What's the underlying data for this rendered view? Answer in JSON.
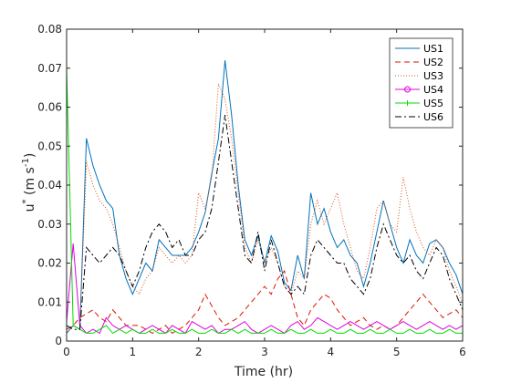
{
  "chart_data": {
    "type": "line",
    "title": "",
    "xlabel": "Time (hr)",
    "ylabel_main": "u",
    "ylabel_sup": "*",
    "ylabel_unit_prefix": " (m s",
    "ylabel_unit_exp": "-1",
    "ylabel_unit_suffix": ")",
    "xlim": [
      0,
      6
    ],
    "ylim": [
      0,
      0.08
    ],
    "xticks": [
      0,
      1,
      2,
      3,
      4,
      5,
      6
    ],
    "xtick_labels": [
      "0",
      "1",
      "2",
      "3",
      "4",
      "5",
      "6"
    ],
    "yticks": [
      0,
      0.01,
      0.02,
      0.03,
      0.04,
      0.05,
      0.06,
      0.07,
      0.08
    ],
    "ytick_labels": [
      "0",
      "0.01",
      "0.02",
      "0.03",
      "0.04",
      "0.05",
      "0.06",
      "0.07",
      "0.08"
    ],
    "grid": false,
    "legend_position": "top-right",
    "x": [
      0.0,
      0.1,
      0.2,
      0.3,
      0.4,
      0.5,
      0.6,
      0.7,
      0.8,
      0.9,
      1.0,
      1.1,
      1.2,
      1.3,
      1.4,
      1.5,
      1.6,
      1.7,
      1.8,
      1.9,
      2.0,
      2.1,
      2.2,
      2.3,
      2.4,
      2.5,
      2.6,
      2.7,
      2.8,
      2.9,
      3.0,
      3.1,
      3.2,
      3.3,
      3.4,
      3.5,
      3.6,
      3.7,
      3.8,
      3.9,
      4.0,
      4.1,
      4.2,
      4.3,
      4.4,
      4.5,
      4.6,
      4.7,
      4.8,
      4.9,
      5.0,
      5.1,
      5.2,
      5.3,
      5.4,
      5.5,
      5.6,
      5.7,
      5.8,
      5.9,
      6.0
    ],
    "series": [
      {
        "name": "US1",
        "color": "#0072BD",
        "dash": "",
        "marker": "none",
        "values": [
          0.002,
          0.004,
          0.003,
          0.052,
          0.045,
          0.04,
          0.036,
          0.034,
          0.022,
          0.016,
          0.012,
          0.016,
          0.02,
          0.018,
          0.026,
          0.024,
          0.022,
          0.022,
          0.022,
          0.024,
          0.028,
          0.033,
          0.043,
          0.052,
          0.072,
          0.058,
          0.04,
          0.026,
          0.022,
          0.027,
          0.02,
          0.027,
          0.023,
          0.015,
          0.013,
          0.022,
          0.016,
          0.038,
          0.03,
          0.034,
          0.028,
          0.024,
          0.026,
          0.022,
          0.02,
          0.014,
          0.02,
          0.028,
          0.036,
          0.03,
          0.024,
          0.02,
          0.026,
          0.022,
          0.02,
          0.025,
          0.026,
          0.024,
          0.02,
          0.017,
          0.012
        ]
      },
      {
        "name": "US2",
        "color": "#D91500",
        "dash": "6,4",
        "marker": "none",
        "values": [
          0.003,
          0.004,
          0.006,
          0.007,
          0.008,
          0.006,
          0.005,
          0.008,
          0.006,
          0.004,
          0.004,
          0.004,
          0.003,
          0.002,
          0.003,
          0.004,
          0.002,
          0.003,
          0.004,
          0.006,
          0.008,
          0.012,
          0.009,
          0.006,
          0.004,
          0.005,
          0.006,
          0.008,
          0.01,
          0.012,
          0.014,
          0.012,
          0.016,
          0.018,
          0.012,
          0.006,
          0.004,
          0.008,
          0.01,
          0.012,
          0.011,
          0.008,
          0.006,
          0.004,
          0.005,
          0.006,
          0.004,
          0.003,
          0.004,
          0.003,
          0.004,
          0.006,
          0.008,
          0.01,
          0.012,
          0.01,
          0.008,
          0.006,
          0.007,
          0.008,
          0.006
        ]
      },
      {
        "name": "US3",
        "color": "#D95319",
        "dash": "1,2",
        "marker": "none",
        "values": [
          0.002,
          0.004,
          0.003,
          0.046,
          0.04,
          0.036,
          0.034,
          0.03,
          0.024,
          0.018,
          0.014,
          0.012,
          0.016,
          0.018,
          0.024,
          0.022,
          0.02,
          0.022,
          0.02,
          0.022,
          0.038,
          0.034,
          0.042,
          0.066,
          0.062,
          0.052,
          0.038,
          0.024,
          0.02,
          0.026,
          0.02,
          0.024,
          0.02,
          0.014,
          0.012,
          0.018,
          0.016,
          0.03,
          0.036,
          0.03,
          0.034,
          0.038,
          0.03,
          0.024,
          0.018,
          0.016,
          0.024,
          0.034,
          0.036,
          0.03,
          0.028,
          0.042,
          0.034,
          0.028,
          0.024,
          0.022,
          0.026,
          0.024,
          0.018,
          0.014,
          0.01
        ]
      },
      {
        "name": "US4",
        "color": "#E000E0",
        "dash": "",
        "marker": "circle",
        "values": [
          0.005,
          0.025,
          0.004,
          0.002,
          0.003,
          0.002,
          0.006,
          0.004,
          0.003,
          0.004,
          0.003,
          0.002,
          0.003,
          0.004,
          0.003,
          0.002,
          0.004,
          0.003,
          0.002,
          0.005,
          0.004,
          0.003,
          0.004,
          0.002,
          0.003,
          0.003,
          0.004,
          0.005,
          0.003,
          0.002,
          0.003,
          0.004,
          0.003,
          0.002,
          0.004,
          0.005,
          0.003,
          0.004,
          0.006,
          0.005,
          0.004,
          0.003,
          0.004,
          0.005,
          0.004,
          0.003,
          0.004,
          0.005,
          0.004,
          0.003,
          0.004,
          0.005,
          0.004,
          0.003,
          0.004,
          0.005,
          0.004,
          0.003,
          0.004,
          0.003,
          0.004
        ]
      },
      {
        "name": "US5",
        "color": "#00DD00",
        "dash": "",
        "marker": "plus",
        "values": [
          0.07,
          0.004,
          0.003,
          0.002,
          0.002,
          0.003,
          0.004,
          0.002,
          0.003,
          0.002,
          0.003,
          0.002,
          0.002,
          0.003,
          0.002,
          0.002,
          0.003,
          0.002,
          0.002,
          0.003,
          0.002,
          0.002,
          0.003,
          0.002,
          0.002,
          0.003,
          0.002,
          0.003,
          0.002,
          0.002,
          0.002,
          0.003,
          0.002,
          0.002,
          0.003,
          0.002,
          0.002,
          0.003,
          0.002,
          0.002,
          0.003,
          0.002,
          0.002,
          0.003,
          0.002,
          0.002,
          0.003,
          0.002,
          0.002,
          0.003,
          0.002,
          0.002,
          0.003,
          0.002,
          0.002,
          0.003,
          0.002,
          0.002,
          0.003,
          0.002,
          0.002
        ]
      },
      {
        "name": "US6",
        "color": "#000000",
        "dash": "7,3,2,3",
        "marker": "none",
        "values": [
          0.004,
          0.003,
          0.003,
          0.024,
          0.022,
          0.02,
          0.022,
          0.024,
          0.022,
          0.018,
          0.014,
          0.018,
          0.024,
          0.028,
          0.03,
          0.028,
          0.024,
          0.026,
          0.022,
          0.022,
          0.026,
          0.028,
          0.034,
          0.046,
          0.058,
          0.046,
          0.034,
          0.022,
          0.02,
          0.028,
          0.018,
          0.026,
          0.02,
          0.014,
          0.012,
          0.014,
          0.012,
          0.022,
          0.026,
          0.024,
          0.022,
          0.02,
          0.02,
          0.016,
          0.014,
          0.012,
          0.016,
          0.024,
          0.03,
          0.026,
          0.022,
          0.02,
          0.022,
          0.018,
          0.016,
          0.02,
          0.024,
          0.022,
          0.016,
          0.012,
          0.008
        ]
      }
    ]
  }
}
